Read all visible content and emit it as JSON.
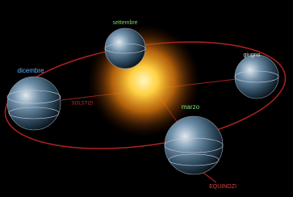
{
  "labels": {
    "september": "settembre",
    "june": "giugno",
    "december": "dicembre",
    "march": "marzo",
    "solstices": "SOLSTIZI",
    "equinoxes": "EQUINOZI"
  }
}
